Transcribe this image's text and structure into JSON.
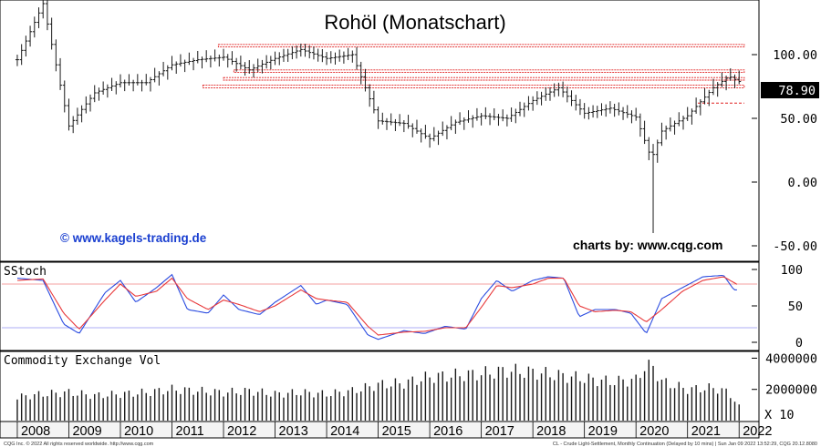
{
  "chart_data": {
    "type": "bar",
    "title": "Rohöl (Monatschart)",
    "watermark_left": "© www.kagels-trading.de",
    "watermark_right": "charts by: www.cqg.com",
    "x_tick_labels": [
      "2008",
      "2009",
      "2010",
      "2011",
      "2012",
      "2013",
      "2014",
      "2015",
      "2016",
      "2017",
      "2018",
      "2019",
      "2020",
      "2021",
      "2022"
    ],
    "price_panel": {
      "ylim": [
        -60,
        140
      ],
      "y_tick_labels": [
        "100.00",
        "50.00",
        "0.00",
        "-50.00"
      ],
      "y_ticks": [
        100,
        50,
        0,
        -50
      ],
      "last_price_label": "78.90",
      "last_price": 78.9,
      "series_monthly_close_approx": [
        {
          "x": 2008.0,
          "y": 96
        },
        {
          "x": 2008.5,
          "y": 140
        },
        {
          "x": 2009.0,
          "y": 44
        },
        {
          "x": 2009.5,
          "y": 70
        },
        {
          "x": 2010.0,
          "y": 78
        },
        {
          "x": 2010.5,
          "y": 78
        },
        {
          "x": 2011.0,
          "y": 92
        },
        {
          "x": 2011.5,
          "y": 96
        },
        {
          "x": 2012.0,
          "y": 98
        },
        {
          "x": 2012.5,
          "y": 88
        },
        {
          "x": 2013.0,
          "y": 97
        },
        {
          "x": 2013.5,
          "y": 104
        },
        {
          "x": 2014.0,
          "y": 97
        },
        {
          "x": 2014.5,
          "y": 100
        },
        {
          "x": 2015.0,
          "y": 48
        },
        {
          "x": 2015.5,
          "y": 46
        },
        {
          "x": 2016.0,
          "y": 34
        },
        {
          "x": 2016.5,
          "y": 47
        },
        {
          "x": 2017.0,
          "y": 52
        },
        {
          "x": 2017.5,
          "y": 50
        },
        {
          "x": 2018.0,
          "y": 64
        },
        {
          "x": 2018.5,
          "y": 74
        },
        {
          "x": 2019.0,
          "y": 54
        },
        {
          "x": 2019.5,
          "y": 58
        },
        {
          "x": 2020.0,
          "y": 51
        },
        {
          "x": 2020.3,
          "y": 18
        },
        {
          "x": 2020.5,
          "y": 40
        },
        {
          "x": 2021.0,
          "y": 52
        },
        {
          "x": 2021.5,
          "y": 74
        },
        {
          "x": 2021.8,
          "y": 83
        },
        {
          "x": 2022.0,
          "y": 78.9
        }
      ],
      "extreme_low_2020": -40,
      "resistance_zones": [
        {
          "y_top": 108,
          "y_bottom": 106
        },
        {
          "y_top": 88,
          "y_bottom": 86
        },
        {
          "y_top": 82,
          "y_bottom": 80
        },
        {
          "y_top": 76,
          "y_bottom": 74
        }
      ],
      "support_line": 62
    },
    "stoch_panel": {
      "label": "SStoch",
      "y_tick_labels": [
        "100",
        "50",
        "0"
      ],
      "y_ticks": [
        100,
        50,
        0
      ],
      "upper_band": 80,
      "lower_band": 20,
      "series": [
        {
          "name": "",
          "color": "#2a4be0",
          "points": [
            {
              "x": 2008.0,
              "y": 88
            },
            {
              "x": 2008.5,
              "y": 85
            },
            {
              "x": 2008.9,
              "y": 25
            },
            {
              "x": 2009.2,
              "y": 12
            },
            {
              "x": 2009.7,
              "y": 68
            },
            {
              "x": 2010.0,
              "y": 85
            },
            {
              "x": 2010.3,
              "y": 55
            },
            {
              "x": 2010.7,
              "y": 75
            },
            {
              "x": 2011.0,
              "y": 93
            },
            {
              "x": 2011.3,
              "y": 45
            },
            {
              "x": 2011.7,
              "y": 40
            },
            {
              "x": 2012.0,
              "y": 65
            },
            {
              "x": 2012.3,
              "y": 45
            },
            {
              "x": 2012.7,
              "y": 38
            },
            {
              "x": 2013.0,
              "y": 55
            },
            {
              "x": 2013.5,
              "y": 78
            },
            {
              "x": 2013.8,
              "y": 52
            },
            {
              "x": 2014.0,
              "y": 58
            },
            {
              "x": 2014.4,
              "y": 52
            },
            {
              "x": 2014.8,
              "y": 10
            },
            {
              "x": 2015.0,
              "y": 4
            },
            {
              "x": 2015.5,
              "y": 16
            },
            {
              "x": 2015.9,
              "y": 12
            },
            {
              "x": 2016.3,
              "y": 22
            },
            {
              "x": 2016.7,
              "y": 18
            },
            {
              "x": 2017.0,
              "y": 60
            },
            {
              "x": 2017.3,
              "y": 85
            },
            {
              "x": 2017.6,
              "y": 70
            },
            {
              "x": 2018.0,
              "y": 85
            },
            {
              "x": 2018.3,
              "y": 90
            },
            {
              "x": 2018.6,
              "y": 88
            },
            {
              "x": 2018.9,
              "y": 35
            },
            {
              "x": 2019.2,
              "y": 45
            },
            {
              "x": 2019.6,
              "y": 45
            },
            {
              "x": 2019.9,
              "y": 40
            },
            {
              "x": 2020.2,
              "y": 12
            },
            {
              "x": 2020.5,
              "y": 60
            },
            {
              "x": 2020.9,
              "y": 75
            },
            {
              "x": 2021.3,
              "y": 90
            },
            {
              "x": 2021.7,
              "y": 92
            },
            {
              "x": 2021.9,
              "y": 72
            },
            {
              "x": 2022.0,
              "y": 72
            }
          ]
        },
        {
          "name": "",
          "color": "#e8383a",
          "points": [
            {
              "x": 2008.0,
              "y": 85
            },
            {
              "x": 2008.5,
              "y": 87
            },
            {
              "x": 2008.9,
              "y": 40
            },
            {
              "x": 2009.2,
              "y": 18
            },
            {
              "x": 2009.7,
              "y": 58
            },
            {
              "x": 2010.0,
              "y": 80
            },
            {
              "x": 2010.3,
              "y": 63
            },
            {
              "x": 2010.7,
              "y": 70
            },
            {
              "x": 2011.0,
              "y": 88
            },
            {
              "x": 2011.3,
              "y": 60
            },
            {
              "x": 2011.7,
              "y": 45
            },
            {
              "x": 2012.0,
              "y": 58
            },
            {
              "x": 2012.3,
              "y": 52
            },
            {
              "x": 2012.7,
              "y": 42
            },
            {
              "x": 2013.0,
              "y": 50
            },
            {
              "x": 2013.5,
              "y": 72
            },
            {
              "x": 2013.8,
              "y": 60
            },
            {
              "x": 2014.0,
              "y": 58
            },
            {
              "x": 2014.4,
              "y": 55
            },
            {
              "x": 2014.8,
              "y": 22
            },
            {
              "x": 2015.0,
              "y": 10
            },
            {
              "x": 2015.5,
              "y": 14
            },
            {
              "x": 2015.9,
              "y": 15
            },
            {
              "x": 2016.3,
              "y": 20
            },
            {
              "x": 2016.7,
              "y": 20
            },
            {
              "x": 2017.0,
              "y": 48
            },
            {
              "x": 2017.3,
              "y": 78
            },
            {
              "x": 2017.6,
              "y": 75
            },
            {
              "x": 2018.0,
              "y": 80
            },
            {
              "x": 2018.3,
              "y": 88
            },
            {
              "x": 2018.6,
              "y": 88
            },
            {
              "x": 2018.9,
              "y": 50
            },
            {
              "x": 2019.2,
              "y": 42
            },
            {
              "x": 2019.6,
              "y": 44
            },
            {
              "x": 2019.9,
              "y": 42
            },
            {
              "x": 2020.2,
              "y": 28
            },
            {
              "x": 2020.5,
              "y": 45
            },
            {
              "x": 2020.9,
              "y": 70
            },
            {
              "x": 2021.3,
              "y": 85
            },
            {
              "x": 2021.7,
              "y": 90
            },
            {
              "x": 2021.9,
              "y": 82
            },
            {
              "x": 2022.0,
              "y": 78
            }
          ]
        }
      ]
    },
    "volume_panel": {
      "label": "Commodity Exchange Vol",
      "y_tick_labels": [
        "4000000",
        "2000000",
        "X 10"
      ],
      "y_ticks": [
        4000000,
        2000000
      ],
      "bars_approx": [
        {
          "x": 2008.0,
          "y": 1500000
        },
        {
          "x": 2008.5,
          "y": 1700000
        },
        {
          "x": 2009.0,
          "y": 1800000
        },
        {
          "x": 2009.5,
          "y": 1600000
        },
        {
          "x": 2010.0,
          "y": 1700000
        },
        {
          "x": 2010.5,
          "y": 1800000
        },
        {
          "x": 2011.0,
          "y": 2000000
        },
        {
          "x": 2011.5,
          "y": 1900000
        },
        {
          "x": 2012.0,
          "y": 1800000
        },
        {
          "x": 2012.5,
          "y": 1900000
        },
        {
          "x": 2013.0,
          "y": 1700000
        },
        {
          "x": 2013.5,
          "y": 1800000
        },
        {
          "x": 2014.0,
          "y": 1700000
        },
        {
          "x": 2014.5,
          "y": 1900000
        },
        {
          "x": 2015.0,
          "y": 2300000
        },
        {
          "x": 2015.5,
          "y": 2400000
        },
        {
          "x": 2016.0,
          "y": 2800000
        },
        {
          "x": 2016.5,
          "y": 2900000
        },
        {
          "x": 2017.0,
          "y": 3000000
        },
        {
          "x": 2017.5,
          "y": 3200000
        },
        {
          "x": 2018.0,
          "y": 3100000
        },
        {
          "x": 2018.5,
          "y": 2900000
        },
        {
          "x": 2019.0,
          "y": 2700000
        },
        {
          "x": 2019.5,
          "y": 2500000
        },
        {
          "x": 2020.0,
          "y": 2600000
        },
        {
          "x": 2020.25,
          "y": 3900000
        },
        {
          "x": 2020.5,
          "y": 2500000
        },
        {
          "x": 2021.0,
          "y": 2000000
        },
        {
          "x": 2021.5,
          "y": 2100000
        },
        {
          "x": 2021.8,
          "y": 1800000
        },
        {
          "x": 2022.0,
          "y": 900000
        }
      ]
    }
  },
  "footer": {
    "left": "CQG Inc. © 2022 All rights reserved worldwide. http://www.cqg.com",
    "right": "CL - Crude Light-Settlement, Monthly Continuation (Delayed by 10 mins) | Sun Jan 09 2022 13:52:29, CQG 20.12.8080"
  },
  "colors": {
    "up_bar": "#1a1a1a",
    "resistance": "#e02020",
    "watermark": "#1a3fd0",
    "price_label_bg": "#000000",
    "price_label_fg": "#ffffff"
  }
}
